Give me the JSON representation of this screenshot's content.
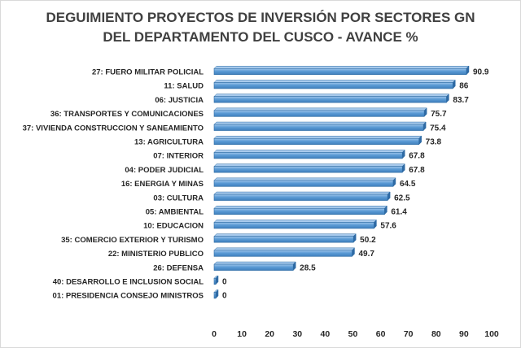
{
  "chart_data": {
    "type": "bar",
    "orientation": "horizontal",
    "title_lines": [
      "DEGUIMIENTO PROYECTOS DE INVERSIÓN POR SECTORES GN",
      "DEL DEPARTAMENTO DEL CUSCO - AVANCE %"
    ],
    "categories": [
      "27: FUERO MILITAR POLICIAL",
      "11: SALUD",
      "06: JUSTICIA",
      "36: TRANSPORTES Y COMUNICACIONES",
      "37: VIVIENDA CONSTRUCCION Y SANEAMIENTO",
      "13: AGRICULTURA",
      "07: INTERIOR",
      "04: PODER JUDICIAL",
      "16: ENERGIA Y MINAS",
      "03: CULTURA",
      "05: AMBIENTAL",
      "10: EDUCACION",
      "35: COMERCIO EXTERIOR Y TURISMO",
      "22: MINISTERIO PUBLICO",
      "26: DEFENSA",
      "40: DESARROLLO E INCLUSION SOCIAL",
      "01: PRESIDENCIA CONSEJO MINISTROS"
    ],
    "values": [
      90.9,
      86,
      83.7,
      75.7,
      75.4,
      73.8,
      67.8,
      67.8,
      64.5,
      62.5,
      61.4,
      57.6,
      50.2,
      49.7,
      28.5,
      0,
      0
    ],
    "xlim": [
      0,
      100
    ],
    "xticks": [
      0,
      10,
      20,
      30,
      40,
      50,
      60,
      70,
      80,
      90,
      100
    ],
    "grid": false,
    "legend": "none",
    "bar_color": "#5b9bd5",
    "bar_edge_color": "#2e6ca4"
  }
}
